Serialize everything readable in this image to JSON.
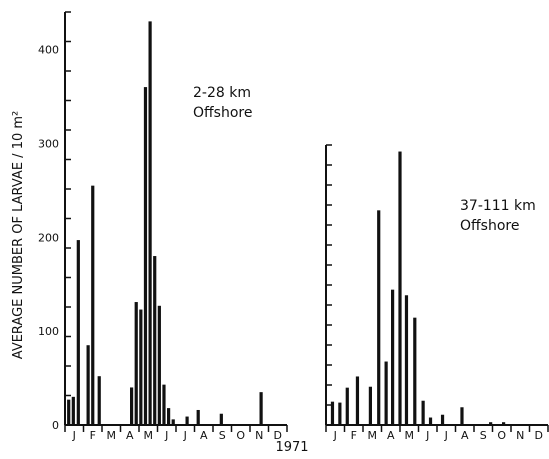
{
  "figure": {
    "ylabel_left": "AVERAGE NUMBER OF LARVAE / 10 m²",
    "year_label": "1971"
  },
  "chart_data": [
    {
      "type": "bar",
      "annotation": [
        "2-28 km",
        "Offshore"
      ],
      "ylim": [
        0,
        440
      ],
      "yticks": [
        0,
        100,
        200,
        300,
        400
      ],
      "month_labels": [
        "J",
        "F",
        "M",
        "A",
        "M",
        "J",
        "J",
        "A",
        "S",
        "O",
        "N",
        "D"
      ],
      "x": [
        0.2,
        0.45,
        0.72,
        1.25,
        1.5,
        1.85,
        2.4,
        3.6,
        3.85,
        4.1,
        4.35,
        4.6,
        4.85,
        5.1,
        5.35,
        5.6,
        5.85,
        6.1,
        6.6,
        7.2,
        7.9,
        8.45,
        9.7,
        10.6
      ],
      "values": [
        27,
        30,
        197,
        85,
        255,
        52,
        0,
        40,
        131,
        123,
        360,
        430,
        180,
        127,
        43,
        18,
        6,
        0,
        9,
        16,
        0,
        12,
        0,
        35
      ]
    },
    {
      "type": "bar",
      "annotation": [
        "37-111 km",
        "Offshore"
      ],
      "ylim": [
        0,
        300
      ],
      "month_labels": [
        "J",
        "F",
        "M",
        "A",
        "M",
        "J",
        "J",
        "A",
        "S",
        "O",
        "N",
        "D"
      ],
      "x": [
        0.35,
        0.75,
        1.15,
        1.7,
        2.4,
        2.85,
        3.25,
        3.6,
        4.0,
        4.35,
        4.8,
        5.25,
        5.65,
        6.3,
        7.35,
        8.05,
        8.9,
        9.6
      ],
      "values": [
        25,
        24,
        40,
        52,
        41,
        230,
        68,
        145,
        293,
        139,
        115,
        26,
        8,
        11,
        19,
        0,
        3,
        3
      ]
    }
  ]
}
